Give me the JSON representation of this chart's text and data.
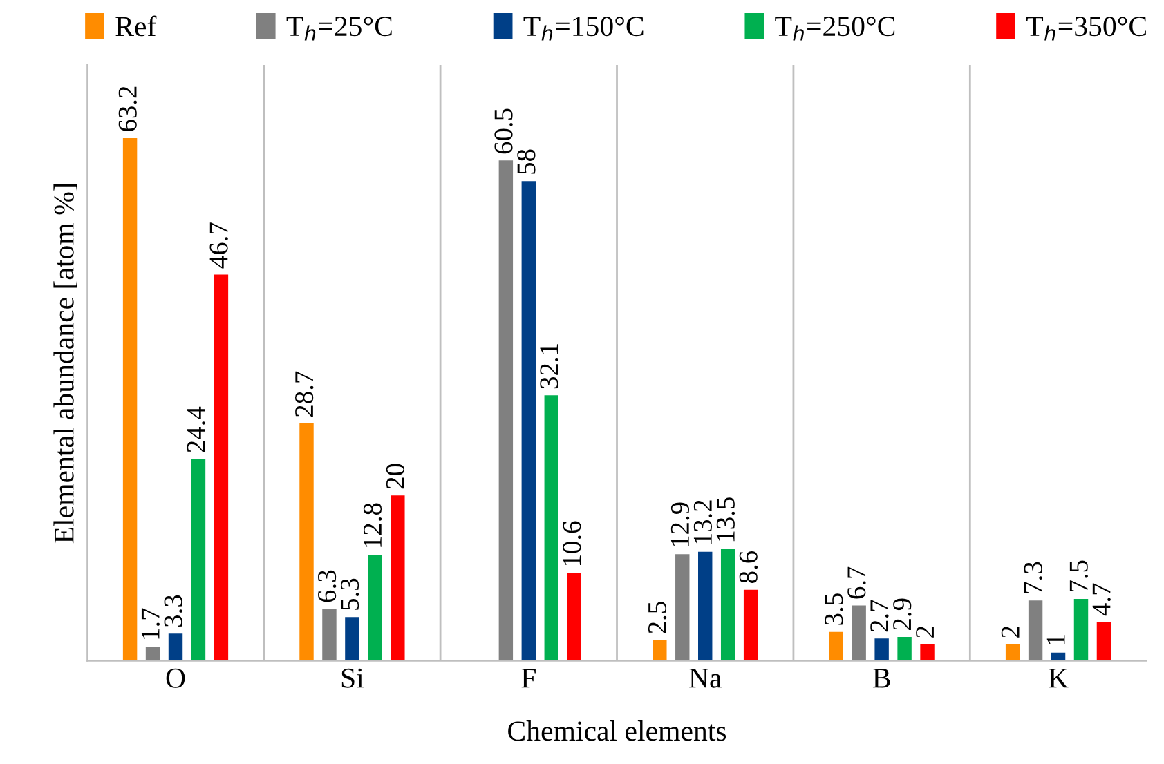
{
  "chart_data": {
    "type": "bar",
    "xlabel": "Chemical elements",
    "ylabel": "Elemental abundance [atom %]",
    "categories": [
      "O",
      "Si",
      "F",
      "Na",
      "B",
      "K"
    ],
    "series": [
      {
        "name": "Ref",
        "color": "#ff8c00",
        "values": [
          63.2,
          28.7,
          null,
          2.5,
          3.5,
          2
        ]
      },
      {
        "name": "T$_{h}$=25°C",
        "color": "#808080",
        "values": [
          1.7,
          6.3,
          60.5,
          12.9,
          6.7,
          7.3
        ]
      },
      {
        "name": "T$_{h}$=150°C",
        "color": "#003f87",
        "values": [
          3.3,
          5.3,
          58,
          13.2,
          2.7,
          1
        ]
      },
      {
        "name": "T$_{h}$=250°C",
        "color": "#00b050",
        "values": [
          24.4,
          12.8,
          32.1,
          13.5,
          2.9,
          7.5
        ]
      },
      {
        "name": "T$_{h}$=350°C",
        "color": "#ff0000",
        "values": [
          46.7,
          20,
          10.6,
          8.6,
          2,
          4.7
        ]
      }
    ],
    "data_labels": true,
    "legend": "top",
    "grid": false
  }
}
